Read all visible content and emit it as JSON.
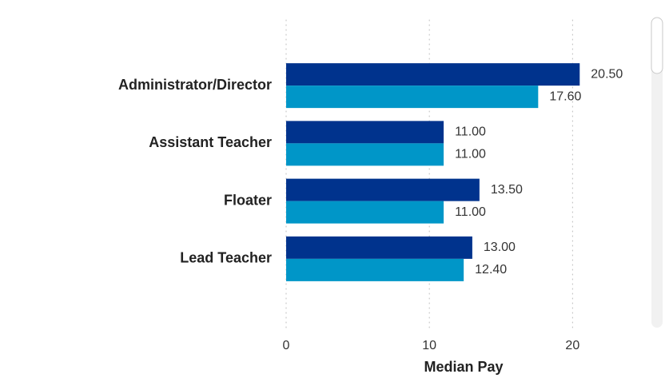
{
  "chart_data": {
    "type": "bar",
    "orientation": "horizontal",
    "categories": [
      "Administrator/Director",
      "Assistant Teacher",
      "Floater",
      "Lead Teacher"
    ],
    "series": [
      {
        "color": "#00338d",
        "values": [
          20.5,
          11,
          13.5,
          13
        ],
        "value_labels": [
          "20.50",
          "11.00",
          "13.50",
          "13.00"
        ]
      },
      {
        "color": "#0096c8",
        "values": [
          17.6,
          11,
          11,
          12.4
        ],
        "value_labels": [
          "17.60",
          "11.00",
          "11.00",
          "12.40"
        ]
      }
    ],
    "xlabel": "Median Pay",
    "xlim": [
      0,
      24
    ],
    "xticks": [
      0,
      10,
      20
    ],
    "grid": true
  }
}
